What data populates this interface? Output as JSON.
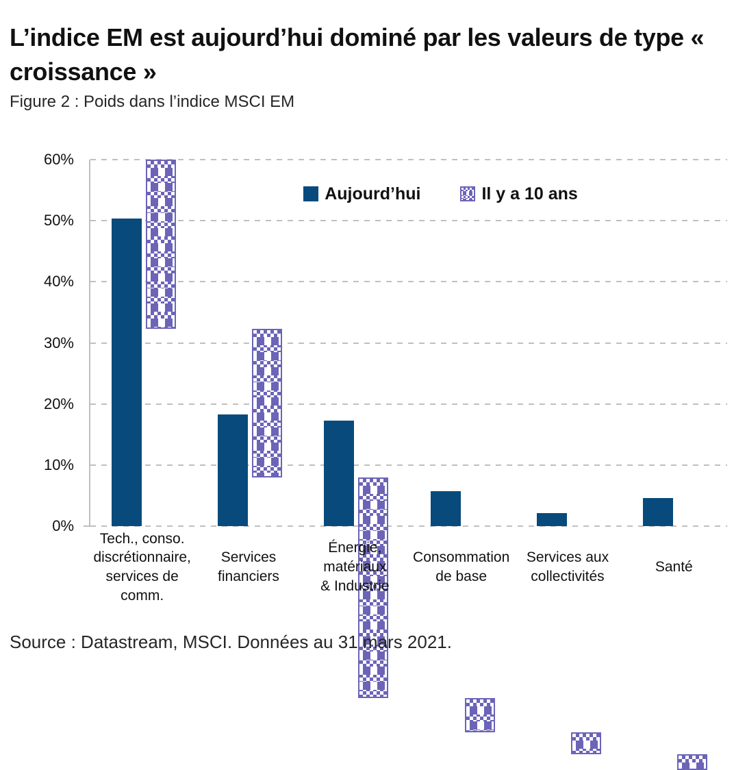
{
  "page": {
    "title": "L’indice EM est aujourd’hui dominé par les valeurs de type « croissance »",
    "subtitle": "Figure 2 : Poids dans l’indice MSCI EM",
    "source": "Source : Datastream, MSCI. Données au 31 mars 2021."
  },
  "colors": {
    "today": "#084A7C",
    "ten_years_ago": "#6B64B7",
    "gridline": "#BFBFBF"
  },
  "chart_data": {
    "type": "bar",
    "title": "Poids dans l’indice MSCI EM",
    "categories": [
      {
        "name": "Tech., conso. discrétionnaire, services de comm.",
        "lines": [
          "Tech., conso.",
          "discrétionnaire,",
          "services de comm."
        ]
      },
      {
        "name": "Services financiers",
        "lines": [
          "Services",
          "financiers"
        ]
      },
      {
        "name": "Énergie, matériaux & Industrie",
        "lines": [
          "Énergie,",
          "matériaux",
          "& Industrie"
        ]
      },
      {
        "name": "Consommation de base",
        "lines": [
          "Consommation",
          "de base"
        ]
      },
      {
        "name": "Services aux collectivités",
        "lines": [
          "Services aux",
          "collectivités"
        ]
      },
      {
        "name": "Santé",
        "lines": [
          "Santé"
        ]
      }
    ],
    "series": [
      {
        "name": "Aujourd’hui",
        "style": "solid",
        "color": "#084A7C",
        "values": [
          50.4,
          18.3,
          17.3,
          5.7,
          2.1,
          4.6
        ]
      },
      {
        "name": "Il y a 10 ans",
        "style": "checkered",
        "color": "#6B64B7",
        "values": [
          27.7,
          24.3,
          36.2,
          5.6,
          3.6,
          2.5
        ]
      }
    ],
    "xlabel": "",
    "ylabel": "",
    "ylim": [
      0,
      60
    ],
    "yticks": [
      "0%",
      "10%",
      "20%",
      "30%",
      "40%",
      "50%",
      "60%"
    ],
    "grid": true,
    "gridstyle": "dashed",
    "legend_position": "top-center"
  }
}
